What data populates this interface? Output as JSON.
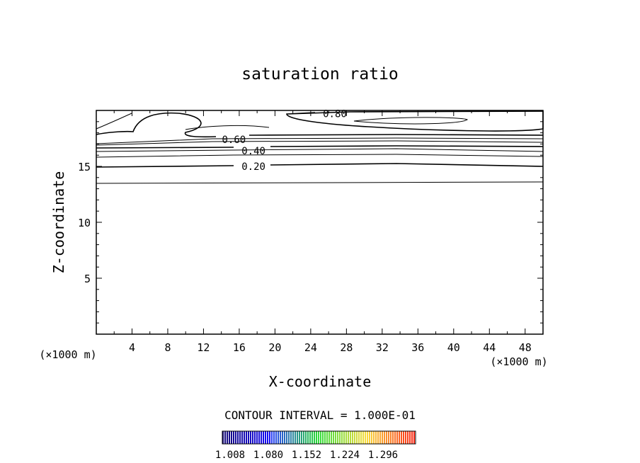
{
  "chart_data": {
    "type": "contour",
    "title": "saturation ratio",
    "xlabel": "X-coordinate",
    "ylabel": "Z-coordinate",
    "x_unit_left": "(×1000 m)",
    "x_unit_right": "(×1000 m)",
    "xlim": [
      0,
      50
    ],
    "ylim": [
      0,
      20
    ],
    "x_ticks": [
      4,
      8,
      12,
      16,
      20,
      24,
      28,
      32,
      36,
      40,
      44,
      48
    ],
    "y_ticks": [
      5,
      10,
      15
    ],
    "contour_labels": [
      {
        "text": "0.80",
        "x": 26.7,
        "z": 19.7
      },
      {
        "text": "0.60",
        "x": 15.4,
        "z": 17.4
      },
      {
        "text": "0.40",
        "x": 17.6,
        "z": 16.4
      },
      {
        "text": "0.20",
        "x": 17.6,
        "z": 15.0
      }
    ],
    "contour_interval_label": "CONTOUR INTERVAL = 1.000E-01",
    "colorbar_ticks": [
      "1.008",
      "1.080",
      "1.152",
      "1.224",
      "1.296"
    ]
  }
}
